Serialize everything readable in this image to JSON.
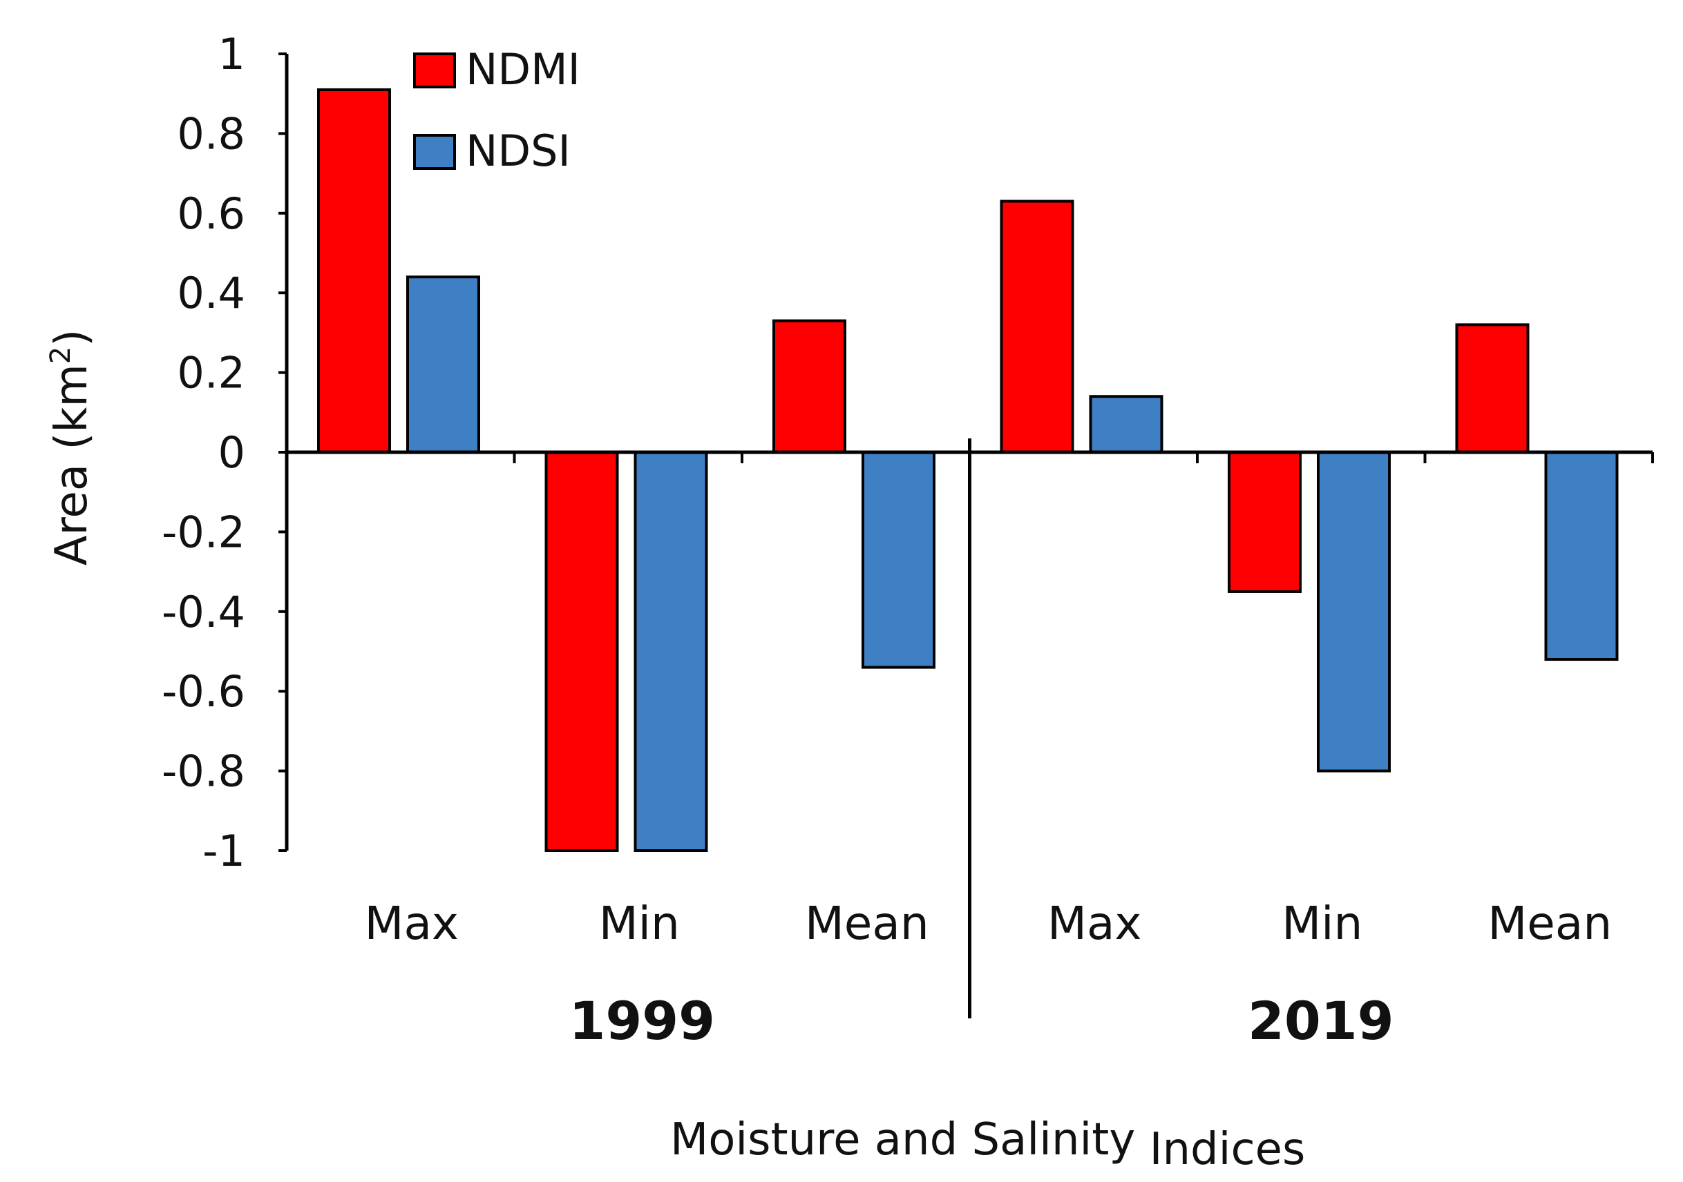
{
  "chart_data": {
    "type": "bar",
    "title": "",
    "xlabel": "Moisture and Salinity",
    "xlabel_suffix": "Indices",
    "ylabel": "Area (km",
    "ylabel_sup": "2",
    "ylabel_close": ")",
    "ylim": [
      -1,
      1
    ],
    "yticks": [
      1,
      0.8,
      0.6,
      0.4,
      0.2,
      0,
      -0.2,
      -0.4,
      -0.6,
      -0.8,
      -1
    ],
    "ytick_labels": [
      "1",
      "0.8",
      "0.6",
      "0.4",
      "0.2",
      "0",
      "-0.2",
      "-0.4",
      "-0.6",
      "-0.8",
      "-1"
    ],
    "categories": [
      "Max",
      "Min",
      "Mean",
      "Max",
      "Min",
      "Mean"
    ],
    "groups": [
      {
        "label": "1999",
        "categories": [
          "Max",
          "Min",
          "Mean"
        ]
      },
      {
        "label": "2019",
        "categories": [
          "Max",
          "Min",
          "Mean"
        ]
      }
    ],
    "series": [
      {
        "name": "NDMI",
        "color": "#ff0000",
        "values": [
          0.91,
          -1.0,
          0.33,
          0.63,
          -0.35,
          0.32
        ]
      },
      {
        "name": "NDSI",
        "color": "#3f7fc4",
        "values": [
          0.44,
          -1.0,
          -0.54,
          0.14,
          -0.8,
          -0.52
        ]
      }
    ],
    "legend_position": "top-left",
    "grid": false
  }
}
